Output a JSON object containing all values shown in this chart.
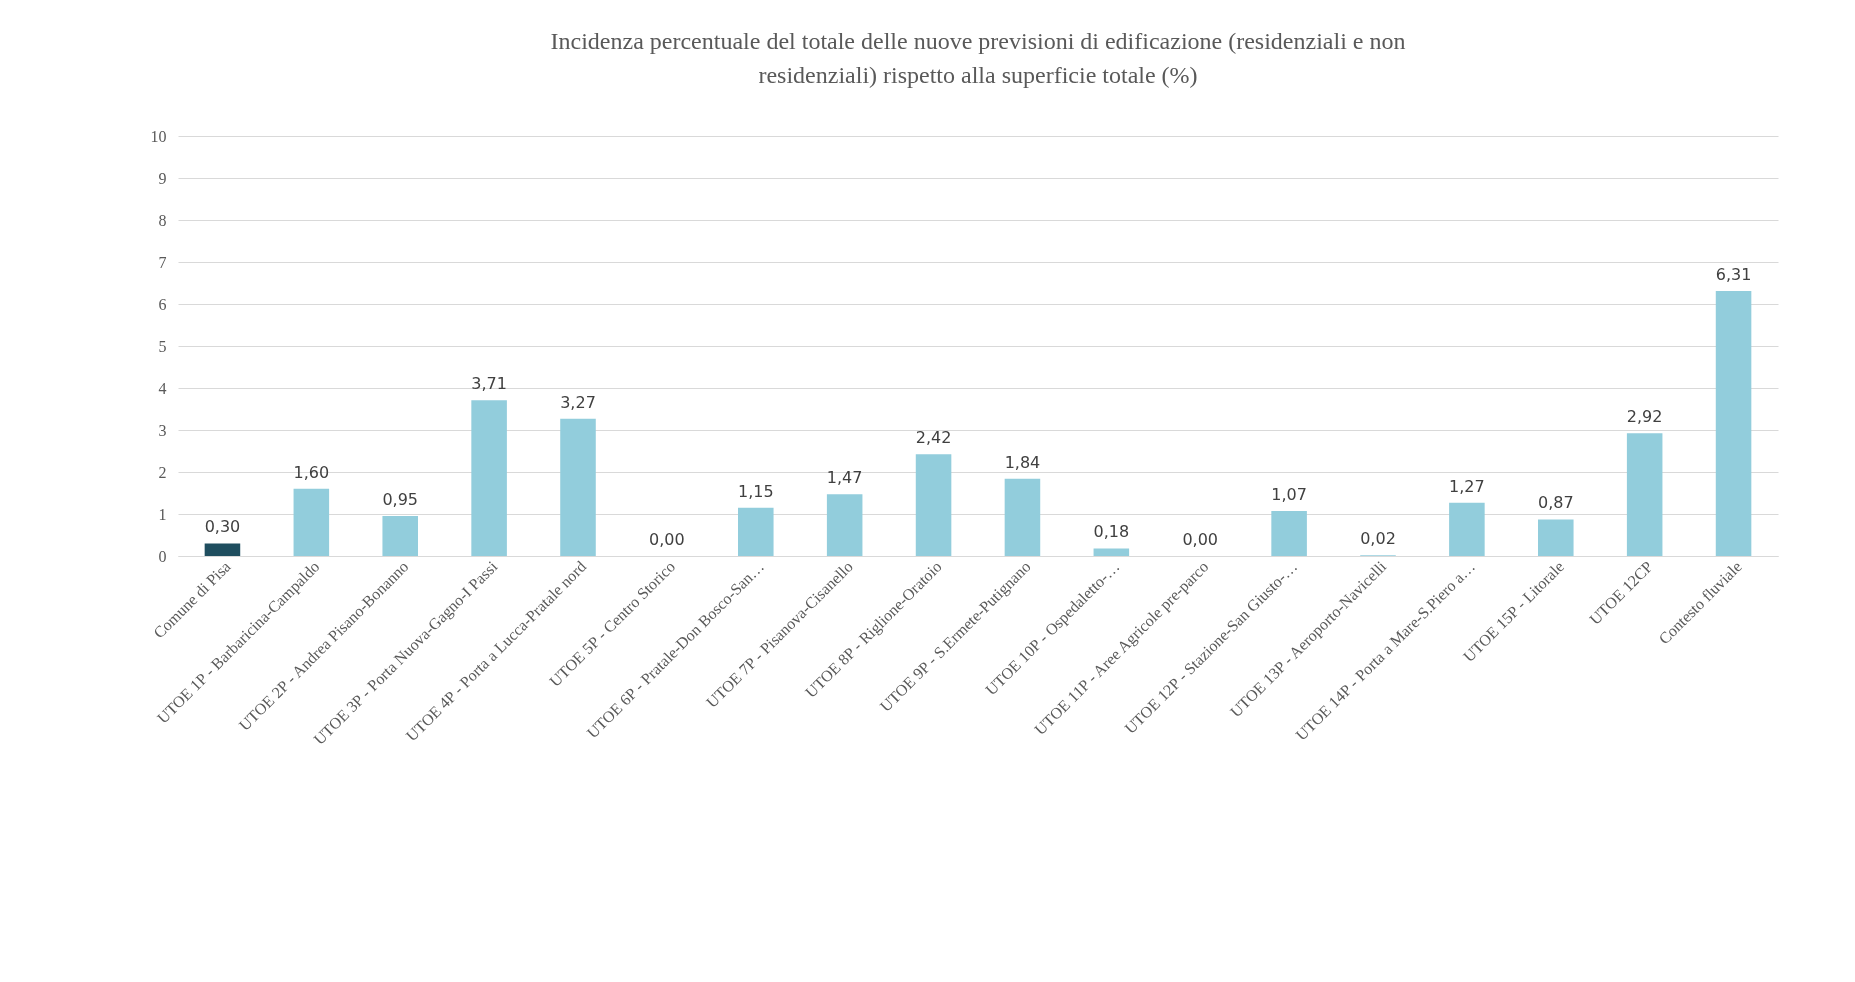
{
  "chart_data": {
    "type": "bar",
    "title": "Incidenza  percentuale del totale delle nuove previsioni di edificazione (residenziali e non residenziali) rispetto alla superficie totale (%)",
    "categories": [
      "Comune di Pisa",
      "UTOE 1P - Barbaricina-Campaldo",
      "UTOE 2P - Andrea Pisano-Bonanno",
      "UTOE 3P - Porta Nuova-Gagno-I Passi",
      "UTOE 4P - Porta a Lucca-Pratale nord",
      "UTOE 5P - Centro Storico",
      "UTOE 6P - Pratale-Don Bosco-San…",
      "UTOE 7P - Pisanova-Cisanello",
      "UTOE 8P - Riglione-Oratoio",
      "UTOE 9P - S.Ermete-Putignano",
      "UTOE 10P - Ospedaletto-…",
      "UTOE 11P - Aree Agricole pre-parco",
      "UTOE 12P - Stazione-San Giusto-…",
      "UTOE 13P - Aeroporto-Navicelli",
      "UTOE 14P - Porta a Mare-S.Piero a…",
      "UTOE 15P - Litorale",
      "UTOE 12CP",
      "Contesto fluviale"
    ],
    "values": [
      0.3,
      1.6,
      0.95,
      3.71,
      3.27,
      0.0,
      1.15,
      1.47,
      2.42,
      1.84,
      0.18,
      0.0,
      1.07,
      0.02,
      1.27,
      0.87,
      2.92,
      6.31
    ],
    "value_labels": [
      "0,30",
      "1,60",
      "0,95",
      "3,71",
      "3,27",
      "0,00",
      "1,15",
      "1,47",
      "2,42",
      "1,84",
      "0,18",
      "0,00",
      "1,07",
      "0,02",
      "1,27",
      "0,87",
      "2,92",
      "6,31"
    ],
    "colors": [
      "#1f4e5f",
      "#92cddc",
      "#92cddc",
      "#92cddc",
      "#92cddc",
      "#92cddc",
      "#92cddc",
      "#92cddc",
      "#92cddc",
      "#92cddc",
      "#92cddc",
      "#92cddc",
      "#92cddc",
      "#92cddc",
      "#92cddc",
      "#92cddc",
      "#92cddc",
      "#92cddc"
    ],
    "ylim": [
      0,
      10
    ],
    "yticks": [
      0,
      1,
      2,
      3,
      4,
      5,
      6,
      7,
      8,
      9,
      10
    ],
    "grid": "y"
  }
}
